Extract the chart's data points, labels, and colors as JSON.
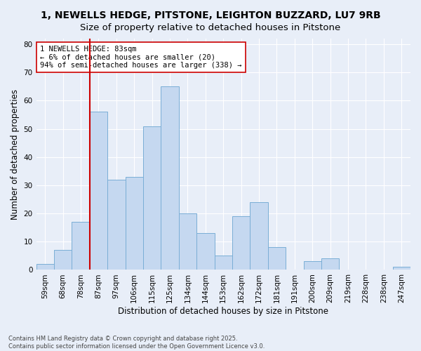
{
  "title_line1": "1, NEWELLS HEDGE, PITSTONE, LEIGHTON BUZZARD, LU7 9RB",
  "title_line2": "Size of property relative to detached houses in Pitstone",
  "xlabel": "Distribution of detached houses by size in Pitstone",
  "ylabel": "Number of detached properties",
  "categories": [
    "59sqm",
    "68sqm",
    "78sqm",
    "87sqm",
    "97sqm",
    "106sqm",
    "115sqm",
    "125sqm",
    "134sqm",
    "144sqm",
    "153sqm",
    "162sqm",
    "172sqm",
    "181sqm",
    "191sqm",
    "200sqm",
    "209sqm",
    "219sqm",
    "228sqm",
    "238sqm",
    "247sqm"
  ],
  "values": [
    2,
    7,
    17,
    56,
    32,
    33,
    51,
    65,
    20,
    13,
    5,
    19,
    24,
    8,
    0,
    3,
    4,
    0,
    0,
    0,
    1
  ],
  "bar_color": "#c5d8f0",
  "bar_edge_color": "#7aaed6",
  "vline_color": "#cc0000",
  "vline_index": 3,
  "annotation_text": "1 NEWELLS HEDGE: 83sqm\n← 6% of detached houses are smaller (20)\n94% of semi-detached houses are larger (338) →",
  "annotation_box_color": "#ffffff",
  "annotation_box_edge": "#cc0000",
  "ylim": [
    0,
    82
  ],
  "yticks": [
    0,
    10,
    20,
    30,
    40,
    50,
    60,
    70,
    80
  ],
  "bg_color": "#e8eef8",
  "plot_bg_color": "#e8eef8",
  "footer": "Contains HM Land Registry data © Crown copyright and database right 2025.\nContains public sector information licensed under the Open Government Licence v3.0.",
  "title_fontsize": 10,
  "label_fontsize": 8.5,
  "tick_fontsize": 7.5,
  "annotation_fontsize": 7.5,
  "grid_color": "#ffffff"
}
